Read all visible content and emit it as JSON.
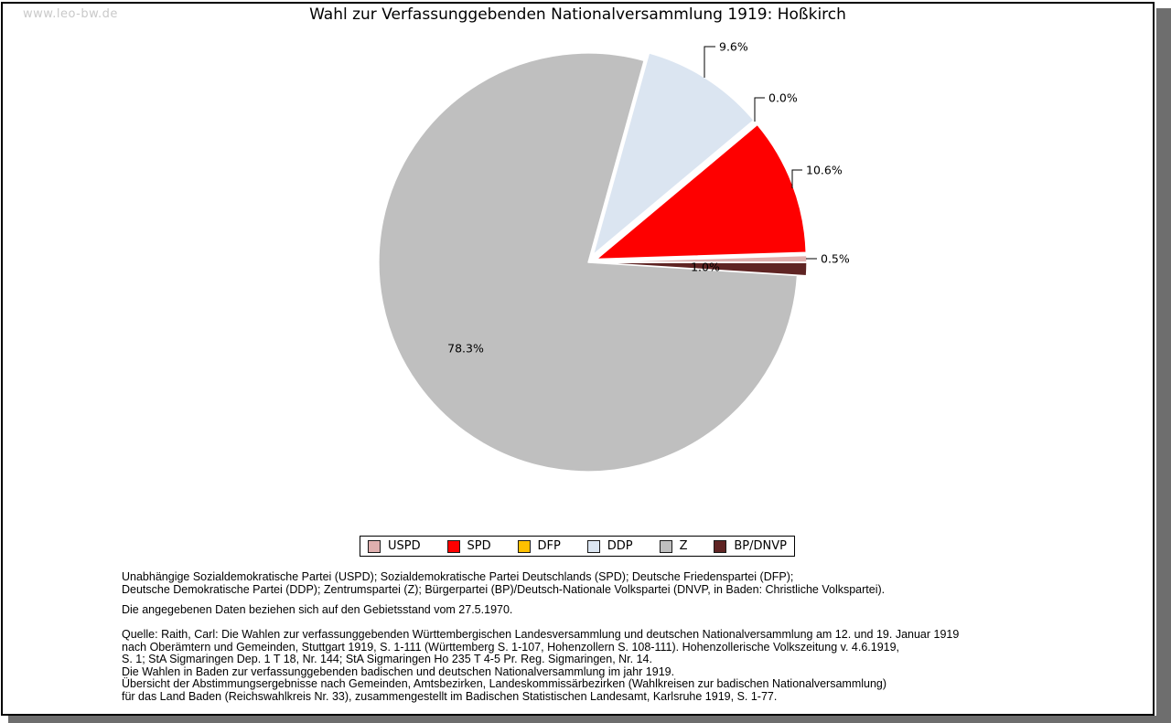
{
  "page": {
    "watermark": "www.leo-bw.de",
    "title": "Wahl zur Verfassunggebenden Nationalversammlung 1919: Hoßkirch"
  },
  "chart_data": {
    "type": "pie",
    "title": "Wahl zur Verfassunggebenden Nationalversammlung 1919: Hoßkirch",
    "value_unit": "percent",
    "start_angle_deg": 0,
    "direction": "counterclockwise",
    "legend_position": "bottom",
    "slices": [
      {
        "party": "USPD",
        "value_pct": 0.5,
        "label": "0.5%",
        "color": "#DFAFAE",
        "exploded": true
      },
      {
        "party": "SPD",
        "value_pct": 10.6,
        "label": "10.6%",
        "color": "#FE0000",
        "exploded": true
      },
      {
        "party": "DFP",
        "value_pct": 0.0,
        "label": "0.0%",
        "color": "#FFC000",
        "exploded": true
      },
      {
        "party": "DDP",
        "value_pct": 9.6,
        "label": "9.6%",
        "color": "#DBE5F1",
        "exploded": true
      },
      {
        "party": "Z",
        "value_pct": 78.3,
        "label": "78.3%",
        "color": "#BFBFBF",
        "exploded": false
      },
      {
        "party": "BP/DNVP",
        "value_pct": 1.0,
        "label": "1.0%",
        "color": "#5F2423",
        "exploded": true
      }
    ]
  },
  "footnotes": {
    "party_names": [
      "Unabhängige Sozialdemokratische Partei (USPD); Sozialdemokratische Partei Deutschlands (SPD); Deutsche Friedenspartei (DFP);",
      "Deutsche Demokratische Partei (DDP); Zentrumspartei (Z); Bürgerpartei (BP)/Deutsch-Nationale Volkspartei (DNVP, in Baden: Christliche Volkspartei)."
    ],
    "gebietsstand": "Die angegebenen Daten beziehen sich auf den Gebietsstand vom 27.5.1970.",
    "source_lines": [
      "Quelle: Raith, Carl: Die Wahlen zur verfassunggebenden Württembergischen Landesversammlung und deutschen Nationalversammlung am 12. und 19. Januar 1919",
      "nach Oberämtern und Gemeinden, Stuttgart 1919, S. 1-111 (Württemberg S. 1-107, Hohenzollern S. 108-111). Hohenzollerische Volkszeitung v. 4.6.1919,",
      "S. 1; StA Sigmaringen Dep. 1 T 18, Nr. 144; StA Sigmaringen Ho 235 T 4-5 Pr. Reg. Sigmaringen, Nr. 14.",
      "Die Wahlen in Baden zur verfassunggebenden badischen und deutschen Nationalversammlung im jahr 1919.",
      "Übersicht der Abstimmungsergebnisse nach Gemeinden, Amtsbezirken, Landeskommissärbezirken (Wahlkreisen zur badischen Nationalversammlung)",
      "für das Land Baden (Reichswahlkreis Nr. 33), zusammengestellt im Badischen Statistischen Landesamt, Karlsruhe 1919, S. 1-77."
    ]
  }
}
